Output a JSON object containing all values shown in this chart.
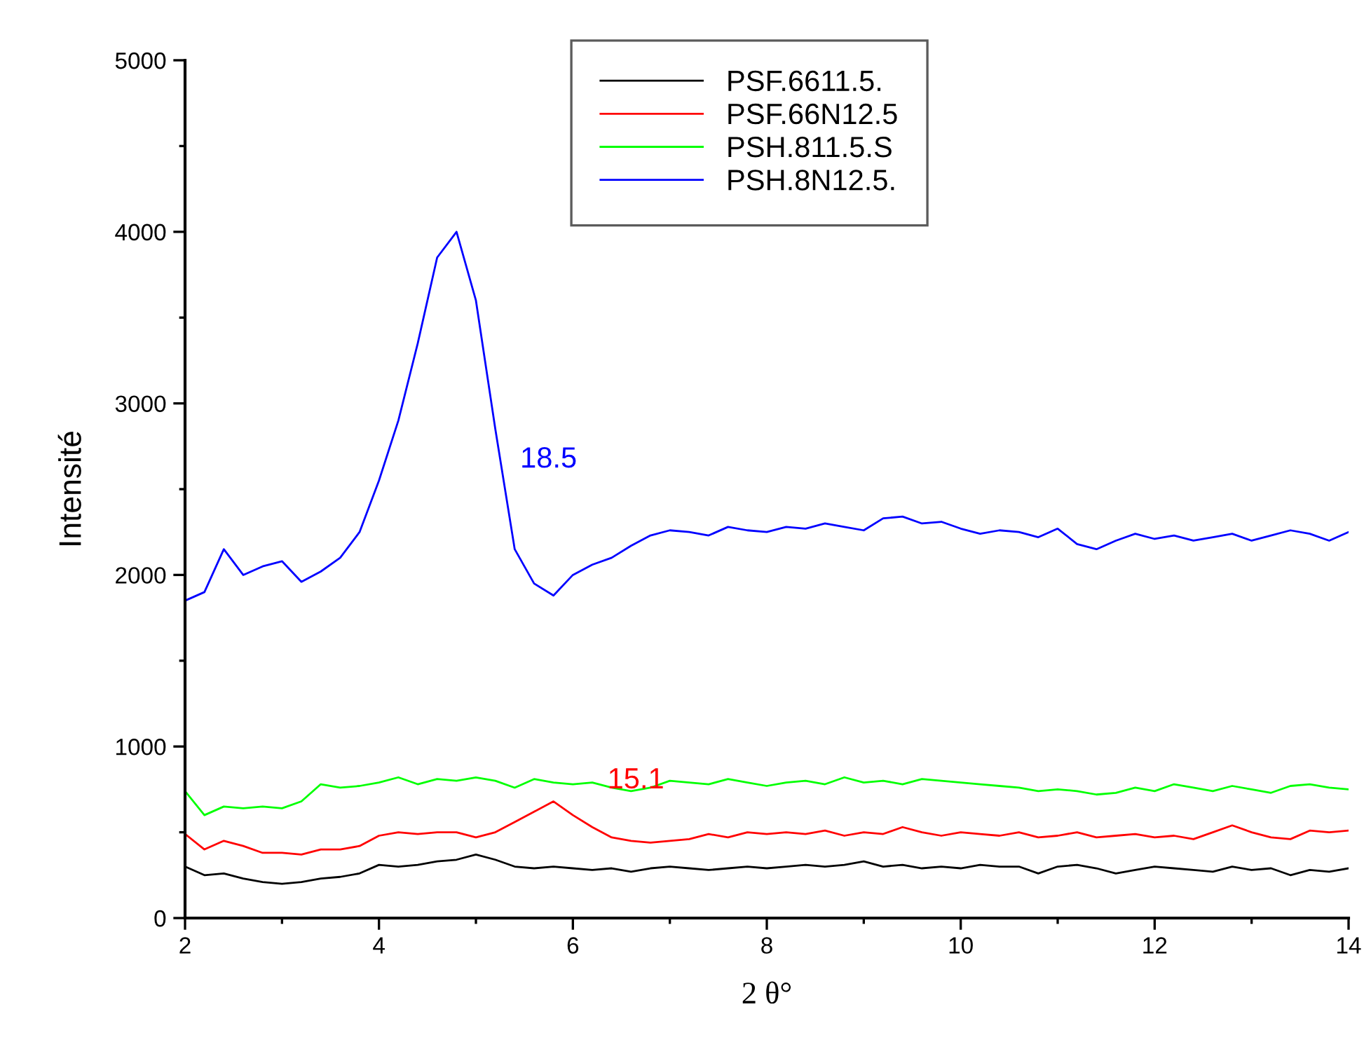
{
  "chart_data": {
    "type": "line",
    "xlabel": "2 θ°",
    "ylabel": "Intensité",
    "xlim": [
      2,
      14
    ],
    "ylim": [
      0,
      5000
    ],
    "xticks": [
      2,
      4,
      6,
      8,
      10,
      12,
      14
    ],
    "yticks": [
      0,
      1000,
      2000,
      3000,
      4000,
      5000
    ],
    "grid": false,
    "legend": "top",
    "marker": "none",
    "line_style": "solid",
    "x": [
      2.0,
      2.2,
      2.4,
      2.6,
      2.8,
      3.0,
      3.2,
      3.4,
      3.6,
      3.8,
      4.0,
      4.2,
      4.4,
      4.6,
      4.8,
      5.0,
      5.2,
      5.4,
      5.6,
      5.8,
      6.0,
      6.2,
      6.4,
      6.6,
      6.8,
      7.0,
      7.2,
      7.4,
      7.6,
      7.8,
      8.0,
      8.2,
      8.4,
      8.6,
      8.8,
      9.0,
      9.2,
      9.4,
      9.6,
      9.8,
      10.0,
      10.2,
      10.4,
      10.6,
      10.8,
      11.0,
      11.2,
      11.4,
      11.6,
      11.8,
      12.0,
      12.2,
      12.4,
      12.6,
      12.8,
      13.0,
      13.2,
      13.4,
      13.6,
      13.8,
      14.0
    ],
    "series": [
      {
        "name": "PSF.6611.5.",
        "color": "#000000",
        "values": [
          300,
          250,
          260,
          230,
          210,
          200,
          210,
          230,
          240,
          260,
          310,
          300,
          310,
          330,
          340,
          370,
          340,
          300,
          290,
          300,
          290,
          280,
          290,
          270,
          290,
          300,
          290,
          280,
          290,
          300,
          290,
          300,
          310,
          300,
          310,
          330,
          300,
          310,
          290,
          300,
          290,
          310,
          300,
          300,
          260,
          300,
          310,
          290,
          260,
          280,
          300,
          290,
          280,
          270,
          300,
          280,
          290,
          250,
          280,
          270,
          290
        ]
      },
      {
        "name": "PSF.66N12.5",
        "color": "#ff0000",
        "values": [
          490,
          400,
          450,
          420,
          380,
          380,
          370,
          400,
          400,
          420,
          480,
          500,
          490,
          500,
          500,
          470,
          500,
          560,
          620,
          680,
          600,
          530,
          470,
          450,
          440,
          450,
          460,
          490,
          470,
          500,
          490,
          500,
          490,
          510,
          480,
          500,
          490,
          530,
          500,
          480,
          500,
          490,
          480,
          500,
          470,
          480,
          500,
          470,
          480,
          490,
          470,
          480,
          460,
          500,
          540,
          500,
          470,
          460,
          510,
          500,
          510
        ]
      },
      {
        "name": "PSH.811.5.S",
        "color": "#00ff00",
        "values": [
          740,
          600,
          650,
          640,
          650,
          640,
          680,
          780,
          760,
          770,
          790,
          820,
          780,
          810,
          800,
          820,
          800,
          760,
          810,
          790,
          780,
          790,
          760,
          740,
          760,
          800,
          790,
          780,
          810,
          790,
          770,
          790,
          800,
          780,
          820,
          790,
          800,
          780,
          810,
          800,
          790,
          780,
          770,
          760,
          740,
          750,
          740,
          720,
          730,
          760,
          740,
          780,
          760,
          740,
          770,
          750,
          730,
          770,
          780,
          760,
          750
        ]
      },
      {
        "name": "PSH.8N12.5.",
        "color": "#0000ff",
        "values": [
          1850,
          1900,
          2150,
          2000,
          2050,
          2080,
          1960,
          2020,
          2100,
          2250,
          2550,
          2900,
          3350,
          3850,
          4000,
          3600,
          2850,
          2150,
          1950,
          1880,
          2000,
          2060,
          2100,
          2170,
          2230,
          2260,
          2250,
          2230,
          2280,
          2260,
          2250,
          2280,
          2270,
          2300,
          2280,
          2260,
          2330,
          2340,
          2300,
          2310,
          2270,
          2240,
          2260,
          2250,
          2220,
          2270,
          2180,
          2150,
          2200,
          2240,
          2210,
          2230,
          2200,
          2220,
          2240,
          2200,
          2230,
          2260,
          2240,
          2200,
          2250
        ]
      }
    ],
    "annotations": [
      "18.5",
      "15.1"
    ]
  }
}
